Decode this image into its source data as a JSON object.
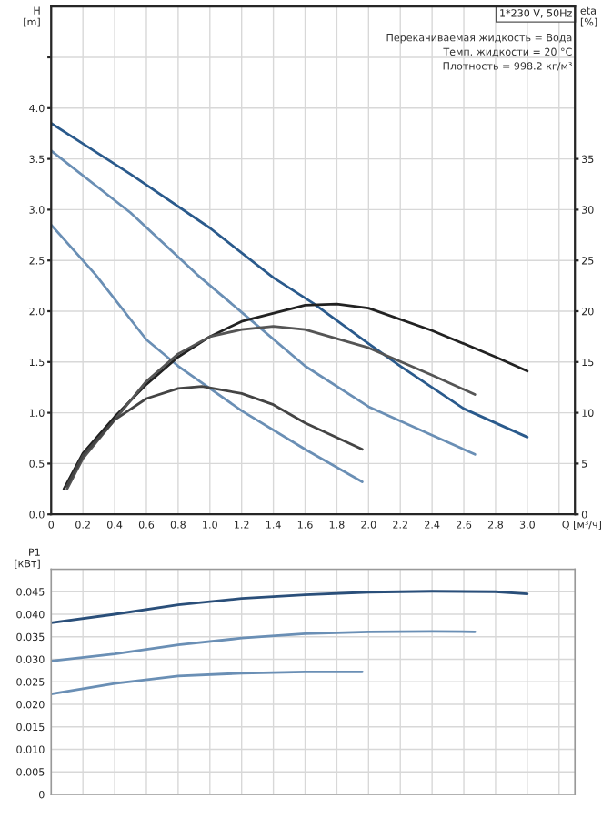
{
  "chart_data": [
    {
      "type": "line",
      "ylabel": "H\n[m]",
      "y2label": "eta\n[%]",
      "xlabel": "Q [м³/ч]",
      "annotations": [
        "1*230 V, 50Hz",
        "Перекачиваемая жидкость = Вода",
        "Темп. жидкости = 20 °C",
        "Плотность = 998.2 кг/м³"
      ],
      "xlim": [
        0,
        3.3
      ],
      "xticks": [
        0,
        0.2,
        0.4,
        0.6,
        0.8,
        {
          "value": 1,
          "label": "1.0"
        },
        1.2,
        1.4,
        1.6,
        1.8,
        {
          "value": 2,
          "label": "2.0"
        },
        2.2,
        2.4,
        2.6,
        2.8,
        {
          "value": 3,
          "label": "3.0"
        },
        {
          "value": 3.2,
          "label": null
        }
      ],
      "ylim": [
        0,
        5
      ],
      "yticks": [
        {
          "value": 0,
          "label": "0.0"
        },
        0.5,
        {
          "value": 1,
          "label": "1.0"
        },
        1.5,
        {
          "value": 2,
          "label": "2.0"
        },
        2.5,
        {
          "value": 3,
          "label": "3.0"
        },
        3.5,
        {
          "value": 4,
          "label": "4.0"
        },
        {
          "value": 4.5,
          "label": null
        }
      ],
      "y2lim": [
        0,
        50
      ],
      "y2ticks": [
        0,
        5,
        10,
        15,
        20,
        25,
        30,
        35
      ],
      "grid": true,
      "legend": false,
      "series": [
        {
          "color": "#2a5a8c",
          "x": [
            0,
            0.2,
            0.5,
            1.0,
            1.4,
            1.65,
            2.0,
            2.2,
            2.6,
            3.0
          ],
          "values": [
            3.85,
            3.65,
            3.35,
            2.82,
            2.33,
            2.08,
            1.68,
            1.46,
            1.04,
            0.76
          ]
        },
        {
          "color": "#6a8fb5",
          "x": [
            0,
            0.5,
            0.92,
            1.2,
            1.6,
            2.0,
            2.4,
            2.67
          ],
          "values": [
            3.58,
            2.97,
            2.36,
            1.99,
            1.46,
            1.06,
            0.78,
            0.59
          ]
        },
        {
          "color": "#6a8fb5",
          "x": [
            0,
            0.28,
            0.6,
            0.8,
            1.2,
            1.6,
            1.96
          ],
          "values": [
            2.85,
            2.36,
            1.72,
            1.46,
            1.02,
            0.64,
            0.32
          ]
        },
        {
          "color": "#222222",
          "axis": "y2",
          "x": [
            0.08,
            0.2,
            0.4,
            0.6,
            0.8,
            1.0,
            1.2,
            1.6,
            1.8,
            2.0,
            2.4,
            2.8,
            3.0
          ],
          "values": [
            2.5,
            6,
            9.6,
            12.8,
            15.5,
            17.5,
            19,
            20.6,
            20.7,
            20.3,
            18.1,
            15.5,
            14.1
          ]
        },
        {
          "color": "#555555",
          "axis": "y2",
          "x": [
            0.1,
            0.2,
            0.4,
            0.6,
            0.8,
            1.0,
            1.2,
            1.4,
            1.6,
            2.0,
            2.4,
            2.67
          ],
          "values": [
            2.5,
            5.5,
            9.3,
            13.1,
            15.8,
            17.5,
            18.2,
            18.5,
            18.2,
            16.4,
            13.7,
            11.8
          ]
        },
        {
          "color": "#444444",
          "axis": "y2",
          "x": [
            0.1,
            0.2,
            0.4,
            0.6,
            0.8,
            0.95,
            1.2,
            1.4,
            1.6,
            1.96
          ],
          "values": [
            2.8,
            5.8,
            9.3,
            11.4,
            12.4,
            12.6,
            11.9,
            10.8,
            9.0,
            6.4
          ]
        }
      ]
    },
    {
      "type": "line",
      "ylabel": "P1\n[кВт]",
      "tick_labels": "y",
      "grid": true,
      "legend": false,
      "xlim": [
        0,
        3.3
      ],
      "xticks": [
        0,
        0.2,
        0.4,
        0.6,
        0.8,
        1.0,
        1.2,
        1.4,
        1.6,
        1.8,
        2.0,
        2.2,
        2.4,
        2.6,
        2.8,
        3.0,
        3.2
      ],
      "ylim": [
        0,
        0.05
      ],
      "yticks": [
        {
          "value": 0,
          "label": "0"
        },
        {
          "value": 0.005,
          "label": "0.005"
        },
        {
          "value": 0.01,
          "label": "0.010"
        },
        {
          "value": 0.015,
          "label": "0.015"
        },
        {
          "value": 0.02,
          "label": "0.020"
        },
        {
          "value": 0.025,
          "label": "0.025"
        },
        {
          "value": 0.03,
          "label": "0.030"
        },
        {
          "value": 0.035,
          "label": "0.035"
        },
        {
          "value": 0.04,
          "label": "0.040"
        },
        {
          "value": 0.045,
          "label": "0.045"
        },
        {
          "value": 0.05,
          "label": null
        }
      ],
      "series": [
        {
          "color": "#2a4f7a",
          "x": [
            0,
            0.4,
            0.8,
            1.2,
            1.6,
            2.0,
            2.4,
            2.8,
            3.0
          ],
          "values": [
            0.0381,
            0.04,
            0.0421,
            0.0435,
            0.0443,
            0.0449,
            0.0451,
            0.045,
            0.0445
          ]
        },
        {
          "color": "#6a8fb5",
          "x": [
            0,
            0.4,
            0.8,
            1.2,
            1.6,
            2.0,
            2.4,
            2.67
          ],
          "values": [
            0.0296,
            0.0312,
            0.0332,
            0.0347,
            0.0357,
            0.0361,
            0.0362,
            0.0361
          ]
        },
        {
          "color": "#6a8fb5",
          "x": [
            0,
            0.4,
            0.8,
            1.2,
            1.6,
            1.96
          ],
          "values": [
            0.0223,
            0.0246,
            0.0263,
            0.0269,
            0.0272,
            0.0272
          ]
        }
      ]
    }
  ]
}
